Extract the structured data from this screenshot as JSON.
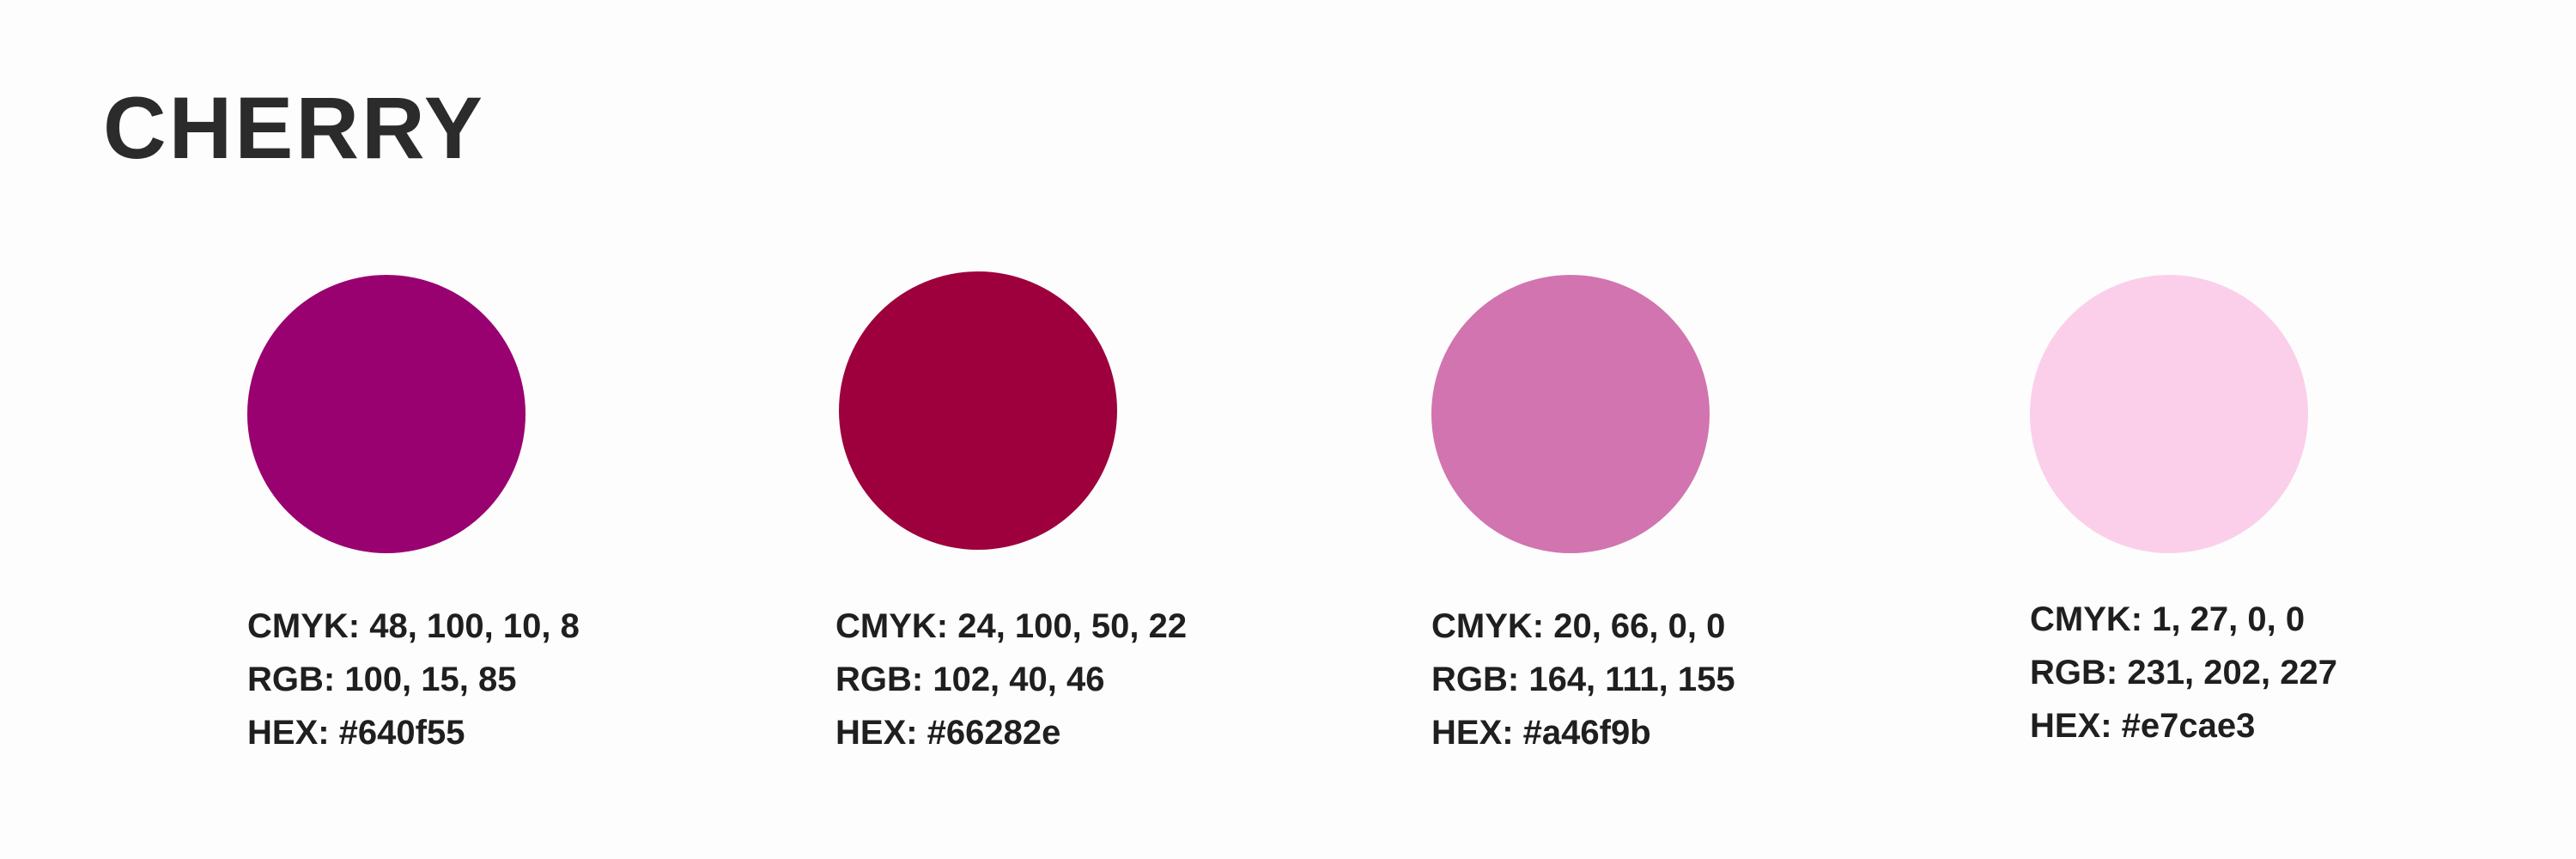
{
  "title": "CHERRY",
  "swatches": [
    {
      "color": "#990070",
      "cmyk": "CMYK: 48, 100, 10, 8",
      "rgb": "RGB: 100, 15, 85",
      "hex": "HEX: #640f55"
    },
    {
      "color": "#9d003c",
      "cmyk": "CMYK: 24, 100, 50, 22",
      "rgb": "RGB: 102, 40, 46",
      "hex": "HEX: #66282e"
    },
    {
      "color": "#d174af",
      "cmyk": "CMYK: 20, 66, 0, 0",
      "rgb": "RGB: 164, 111, 155",
      "hex": "HEX: #a46f9b"
    },
    {
      "color": "#fbcfea",
      "cmyk": "CMYK: 1, 27, 0, 0",
      "rgb": "RGB: 231, 202, 227",
      "hex": "HEX: #e7cae3"
    }
  ]
}
